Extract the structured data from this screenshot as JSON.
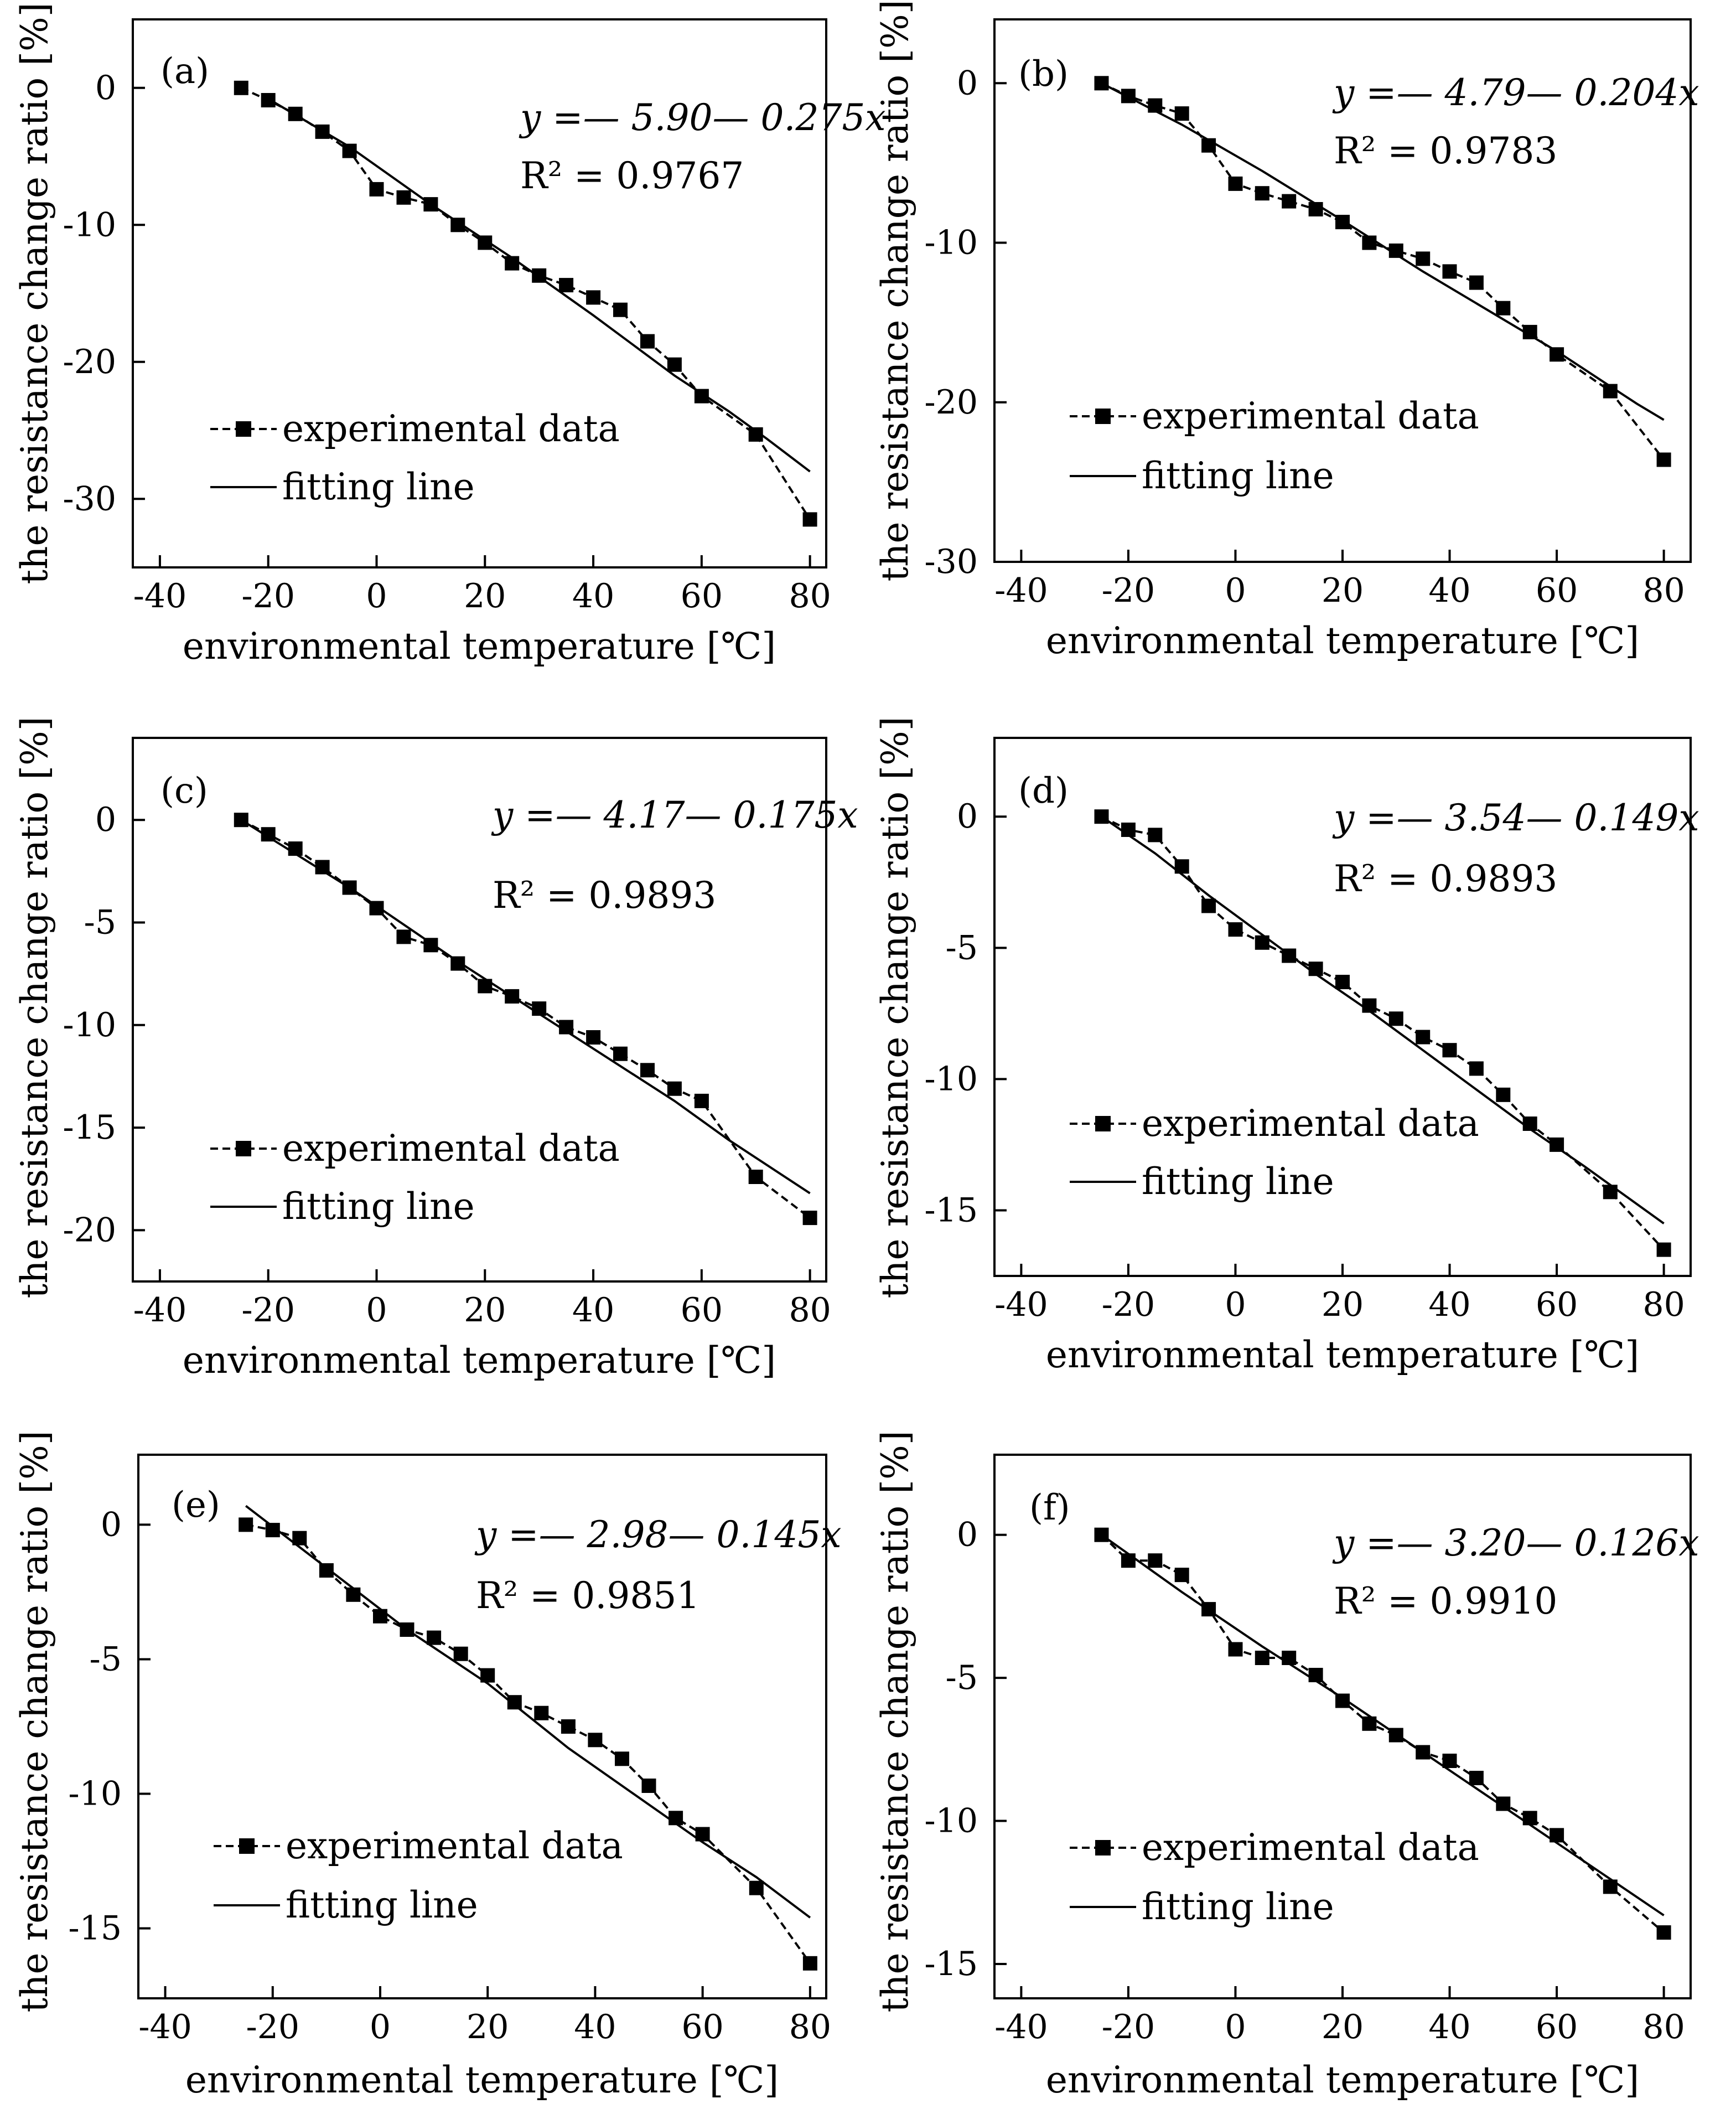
{
  "figure": {
    "x_ticks": [
      "-40",
      "-20",
      "0",
      "20",
      "40",
      "60",
      "80"
    ],
    "legend": {
      "experimental": "experimental data",
      "fitting": "fitting line"
    }
  },
  "panels": [
    {
      "id": "a",
      "label": "(a)",
      "xlabel": "environmental temperature [℃]",
      "ylabel": "the resistance change ratio [%]",
      "equation": "y =— 5.90— 0.275x",
      "r2": "R² = 0.9767",
      "chart_data": {
        "type": "line",
        "title": "(a)",
        "xlabel": "environmental temperature [℃]",
        "ylabel": "the resistance change ratio [%]",
        "xlim": [
          -45,
          83
        ],
        "ylim": [
          -35,
          5
        ],
        "yticks": [
          0,
          -10,
          -20,
          -30
        ],
        "series": [
          {
            "name": "experimental data",
            "x": [
              -25,
              -20,
              -15,
              -10,
              -5,
              0,
              5,
              10,
              15,
              20,
              25,
              30,
              35,
              40,
              45,
              50,
              55,
              60,
              70,
              80
            ],
            "y": [
              0,
              -0.9,
              -1.9,
              -3.2,
              -4.6,
              -7.4,
              -8.0,
              -8.5,
              -10.0,
              -11.3,
              -12.8,
              -13.7,
              -14.4,
              -15.3,
              -16.2,
              -18.5,
              -20.2,
              -22.5,
              -25.3,
              -31.5
            ]
          },
          {
            "name": "fitting line",
            "x": [
              -20,
              -5,
              10,
              25,
              40,
              55,
              65,
              72,
              76,
              80
            ],
            "y": [
              -0.8,
              -4.3,
              -8.5,
              -12.4,
              -16.6,
              -21.0,
              -23.6,
              -25.6,
              -26.8,
              -28.0
            ]
          }
        ]
      }
    },
    {
      "id": "b",
      "label": "(b)",
      "xlabel": "environmental temperature [℃]",
      "ylabel": "the resistance change ratio [%]",
      "equation": "y =— 4.79— 0.204x",
      "r2": "R² = 0.9783",
      "chart_data": {
        "type": "line",
        "title": "(b)",
        "xlabel": "environmental temperature [℃]",
        "ylabel": "the resistance change ratio [%]",
        "xlim": [
          -45,
          85
        ],
        "ylim": [
          -30,
          4
        ],
        "yticks": [
          0,
          -10,
          -20,
          -30
        ],
        "series": [
          {
            "name": "experimental data",
            "x": [
              -25,
              -20,
              -15,
              -10,
              -5,
              0,
              5,
              10,
              15,
              20,
              25,
              30,
              35,
              40,
              45,
              50,
              55,
              60,
              70,
              80
            ],
            "y": [
              0,
              -0.8,
              -1.4,
              -1.9,
              -3.9,
              -6.3,
              -6.9,
              -7.4,
              -7.9,
              -8.7,
              -10.0,
              -10.5,
              -11.0,
              -11.8,
              -12.5,
              -14.1,
              -15.6,
              -17.0,
              -19.3,
              -23.6
            ]
          },
          {
            "name": "fitting line",
            "x": [
              -25,
              -10,
              5,
              20,
              35,
              50,
              60,
              65,
              70,
              75,
              80
            ],
            "y": [
              0,
              -2.6,
              -5.5,
              -8.6,
              -11.8,
              -14.8,
              -16.8,
              -17.9,
              -19.0,
              -20.1,
              -21.1
            ]
          }
        ]
      }
    },
    {
      "id": "c",
      "label": "(c)",
      "xlabel": "environmental temperature [℃]",
      "ylabel": "the resistance change ratio [%]",
      "equation": "y =— 4.17— 0.175x",
      "r2": "R² = 0.9893",
      "chart_data": {
        "type": "line",
        "title": "(c)",
        "xlabel": "environmental temperature [℃]",
        "ylabel": "the resistance change ratio [%]",
        "xlim": [
          -45,
          83
        ],
        "ylim": [
          -22.5,
          4
        ],
        "yticks": [
          0,
          -5,
          -10,
          -15,
          -20
        ],
        "series": [
          {
            "name": "experimental data",
            "x": [
              -25,
              -20,
              -15,
              -10,
              -5,
              0,
              5,
              10,
              15,
              20,
              25,
              30,
              35,
              40,
              45,
              50,
              55,
              60,
              70,
              80
            ],
            "y": [
              0,
              -0.7,
              -1.4,
              -2.3,
              -3.3,
              -4.3,
              -5.7,
              -6.1,
              -7.0,
              -8.1,
              -8.6,
              -9.2,
              -10.1,
              -10.6,
              -11.4,
              -12.2,
              -13.1,
              -13.7,
              -17.4,
              -19.4
            ]
          },
          {
            "name": "fitting line",
            "x": [
              -25,
              -5,
              15,
              35,
              55,
              65,
              80
            ],
            "y": [
              0,
              -3.3,
              -6.9,
              -10.3,
              -13.7,
              -15.6,
              -18.2
            ]
          }
        ]
      }
    },
    {
      "id": "d",
      "label": "(d)",
      "xlabel": "environmental temperature [℃]",
      "ylabel": "the resistance change ratio [%]",
      "equation": "y =— 3.54— 0.149x",
      "r2": "R² = 0.9893",
      "chart_data": {
        "type": "line",
        "title": "(d)",
        "xlabel": "environmental temperature [℃]",
        "ylabel": "the resistance change ratio [%]",
        "xlim": [
          -45,
          85
        ],
        "ylim": [
          -17.5,
          3
        ],
        "yticks": [
          0,
          -5,
          -10,
          -15
        ],
        "series": [
          {
            "name": "experimental data",
            "x": [
              -25,
              -20,
              -15,
              -10,
              -5,
              0,
              5,
              10,
              15,
              20,
              25,
              30,
              35,
              40,
              45,
              50,
              55,
              60,
              70,
              80
            ],
            "y": [
              0,
              -0.5,
              -0.7,
              -1.9,
              -3.4,
              -4.3,
              -4.8,
              -5.3,
              -5.8,
              -6.3,
              -7.2,
              -7.7,
              -8.4,
              -8.9,
              -9.6,
              -10.6,
              -11.7,
              -12.5,
              -14.3,
              -16.5
            ]
          },
          {
            "name": "fitting line",
            "x": [
              -25,
              -15,
              -5,
              5,
              15,
              25,
              35,
              45,
              55,
              65,
              80
            ],
            "y": [
              0,
              -1.4,
              -3.0,
              -4.5,
              -6.0,
              -7.4,
              -8.9,
              -10.4,
              -11.9,
              -13.3,
              -15.5
            ]
          }
        ]
      }
    },
    {
      "id": "e",
      "label": "(e)",
      "xlabel": "environmental temperature [℃]",
      "ylabel": "the resistance change ratio [%]",
      "equation": "y =— 2.98— 0.145x",
      "r2": "R² = 0.9851",
      "chart_data": {
        "type": "line",
        "title": "(e)",
        "xlabel": "environmental temperature [℃]",
        "ylabel": "the resistance change ratio [%]",
        "xlim": [
          -45,
          83
        ],
        "ylim": [
          -17.6,
          2.6
        ],
        "yticks": [
          0,
          -5,
          -10,
          -15
        ],
        "series": [
          {
            "name": "experimental data",
            "x": [
              -25,
              -20,
              -15,
              -10,
              -5,
              0,
              5,
              10,
              15,
              20,
              25,
              30,
              35,
              40,
              45,
              50,
              55,
              60,
              70,
              80
            ],
            "y": [
              0,
              -0.2,
              -0.5,
              -1.7,
              -2.6,
              -3.4,
              -3.9,
              -4.2,
              -4.8,
              -5.6,
              -6.6,
              -7.0,
              -7.5,
              -8.0,
              -8.7,
              -9.7,
              -10.9,
              -11.5,
              -13.5,
              -16.3
            ]
          },
          {
            "name": "fitting line",
            "x": [
              -25,
              -10,
              5,
              20,
              35,
              50,
              60,
              70,
              80
            ],
            "y": [
              0.7,
              -1.6,
              -3.9,
              -5.9,
              -8.3,
              -10.4,
              -11.8,
              -13.1,
              -14.6
            ]
          }
        ]
      }
    },
    {
      "id": "f",
      "label": "(f)",
      "xlabel": "environmental temperature [℃]",
      "ylabel": "the resistance change ratio [%]",
      "equation": "y =— 3.20— 0.126x",
      "r2": "R² = 0.9910",
      "chart_data": {
        "type": "line",
        "title": "(f)",
        "xlabel": "environmental temperature [℃]",
        "ylabel": "the resistance change ratio [%]",
        "xlim": [
          -45,
          85
        ],
        "ylim": [
          -16.2,
          2.8
        ],
        "yticks": [
          0,
          -5,
          -10,
          -15
        ],
        "series": [
          {
            "name": "experimental data",
            "x": [
              -25,
              -20,
              -15,
              -10,
              -5,
              0,
              5,
              10,
              15,
              20,
              25,
              30,
              35,
              40,
              45,
              50,
              55,
              60,
              70,
              80
            ],
            "y": [
              0,
              -0.9,
              -0.9,
              -1.4,
              -2.6,
              -4.0,
              -4.3,
              -4.3,
              -4.9,
              -5.8,
              -6.6,
              -7.0,
              -7.6,
              -7.9,
              -8.5,
              -9.4,
              -9.9,
              -10.5,
              -12.3,
              -13.9
            ]
          },
          {
            "name": "fitting line",
            "x": [
              -25,
              -10,
              5,
              20,
              35,
              50,
              65,
              80
            ],
            "y": [
              0,
              -2.0,
              -3.9,
              -5.7,
              -7.6,
              -9.5,
              -11.4,
              -13.3
            ]
          }
        ]
      }
    }
  ]
}
